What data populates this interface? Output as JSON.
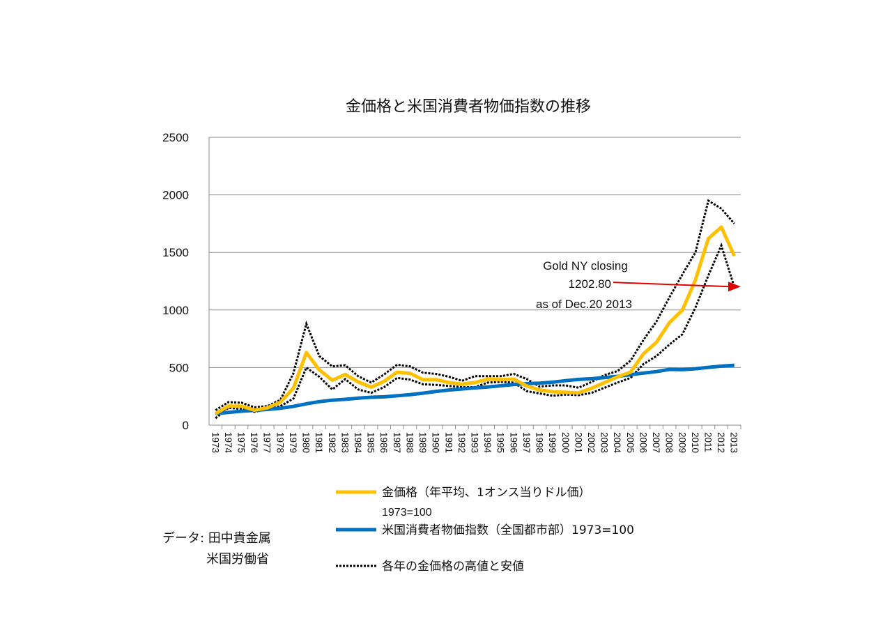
{
  "chart_data": {
    "type": "line",
    "title": "金価格と米国消費者物価指数の推移",
    "xlabel": "",
    "ylabel": "",
    "ylim": [
      0,
      2500
    ],
    "yticks": [
      0,
      500,
      1000,
      1500,
      2000,
      2500
    ],
    "grid": true,
    "categories": [
      "1973",
      "1974",
      "1975",
      "1976",
      "1977",
      "1978",
      "1979",
      "1980",
      "1981",
      "1982",
      "1983",
      "1984",
      "1985",
      "1986",
      "1987",
      "1988",
      "1989",
      "1990",
      "1991",
      "1992",
      "1993",
      "1994",
      "1995",
      "1996",
      "1997",
      "1998",
      "1999",
      "2000",
      "2001",
      "2002",
      "2003",
      "2004",
      "2005",
      "2006",
      "2007",
      "2008",
      "2009",
      "2010",
      "2011",
      "2012",
      "2013"
    ],
    "series": [
      {
        "name": "金価格（年平均、1オンス当りドル価）",
        "note": "1973=100",
        "color": "#FFC000",
        "style": "solid",
        "values": [
          100,
          165,
          165,
          130,
          150,
          200,
          320,
          630,
          480,
          390,
          440,
          375,
          330,
          380,
          460,
          450,
          395,
          395,
          370,
          355,
          370,
          400,
          395,
          400,
          340,
          305,
          290,
          285,
          280,
          320,
          370,
          420,
          460,
          620,
          720,
          890,
          1000,
          1260,
          1620,
          1720,
          1470
        ]
      },
      {
        "name": "米国消費者物価指数（全国都市部）1973=100",
        "color": "#0070C0",
        "style": "solid",
        "values": [
          100,
          111,
          121,
          128,
          136,
          147,
          163,
          185,
          204,
          217,
          224,
          234,
          242,
          246,
          255,
          265,
          278,
          293,
          305,
          314,
          324,
          332,
          342,
          352,
          360,
          365,
          373,
          386,
          397,
          403,
          413,
          424,
          438,
          452,
          465,
          484,
          482,
          490,
          502,
          512,
          520
        ]
      },
      {
        "name": "各年の金価格の高値と安値",
        "color": "#000000",
        "style": "dotted",
        "high": [
          130,
          200,
          195,
          155,
          165,
          220,
          450,
          880,
          600,
          510,
          520,
          425,
          370,
          440,
          525,
          510,
          455,
          445,
          420,
          385,
          425,
          425,
          425,
          445,
          400,
          335,
          345,
          345,
          325,
          375,
          435,
          470,
          560,
          740,
          900,
          1110,
          1310,
          1500,
          1950,
          1880,
          1750
        ],
        "low": [
          60,
          150,
          140,
          115,
          140,
          165,
          230,
          500,
          420,
          310,
          400,
          310,
          280,
          330,
          410,
          395,
          355,
          350,
          340,
          330,
          330,
          370,
          375,
          370,
          295,
          275,
          255,
          265,
          260,
          280,
          325,
          370,
          410,
          530,
          600,
          700,
          790,
          1020,
          1300,
          1560,
          1200
        ]
      }
    ],
    "annotation": {
      "line1": "Gold NY closing",
      "line2": "1202.80",
      "line3": "as of Dec.20 2013",
      "arrow_target_value": 1202.8,
      "arrow_color": "#E00000"
    }
  },
  "legend": {
    "gold_label": "金価格（年平均、1オンス当りドル価）",
    "gold_sub": "1973=100",
    "cpi_label": "米国消費者物価指数（全国都市部）1973=100",
    "range_label": "各年の金価格の高値と安値"
  },
  "source": {
    "line1": "データ: 田中貴金属",
    "line2": "米国労働省"
  }
}
